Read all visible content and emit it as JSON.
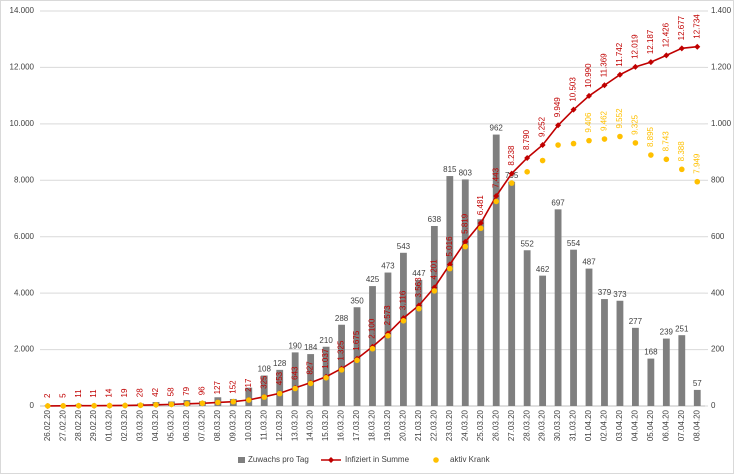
{
  "chart_data": {
    "type": "bar",
    "categories": [
      "26.02.20",
      "27.02.20",
      "28.02.20",
      "29.02.20",
      "01.03.20",
      "02.03.20",
      "03.03.20",
      "04.03.20",
      "05.03.20",
      "06.03.20",
      "07.03.20",
      "08.03.20",
      "09.03.20",
      "10.03.20",
      "11.03.20",
      "12.03.20",
      "13.03.20",
      "14.03.20",
      "15.03.20",
      "16.03.20",
      "17.03.20",
      "18.03.20",
      "19.03.20",
      "20.03.20",
      "21.03.20",
      "22.03.20",
      "23.03.20",
      "24.03.20",
      "25.03.20",
      "26.03.20",
      "27.03.20",
      "28.03.20",
      "29.03.20",
      "30.03.20",
      "31.03.20",
      "01.04.20",
      "02.04.20",
      "03.04.20",
      "04.04.20",
      "05.04.20",
      "06.04.20",
      "07.04.20",
      "08.04.20"
    ],
    "series": [
      {
        "name": "Zuwachs pro Tag",
        "type": "bar",
        "axis": "y2",
        "color": "#7f7f7f",
        "values": [
          2,
          3,
          6,
          0,
          3,
          5,
          9,
          14,
          16,
          21,
          17,
          31,
          25,
          65,
          108,
          128,
          190,
          184,
          210,
          288,
          350,
          425,
          473,
          543,
          447,
          638,
          815,
          803,
          662,
          962,
          795,
          552,
          462,
          697,
          554,
          487,
          379,
          373,
          277,
          168,
          239,
          251,
          57
        ],
        "value_labels": [
          null,
          null,
          null,
          null,
          null,
          null,
          null,
          null,
          null,
          null,
          null,
          null,
          null,
          null,
          "108",
          "128",
          "190",
          "184",
          "210",
          "288",
          "350",
          "425",
          "473",
          "543",
          "447",
          "638",
          "815",
          "803",
          null,
          "962",
          "795",
          "552",
          "462",
          "697",
          "554",
          "487",
          "379",
          "373",
          "277",
          "168",
          "239",
          "251",
          "57"
        ]
      },
      {
        "name": "Infiziert in Summe",
        "type": "line",
        "color": "#c00000",
        "values": [
          2,
          5,
          11,
          11,
          14,
          19,
          28,
          42,
          58,
          79,
          96,
          127,
          152,
          217,
          325,
          453,
          643,
          827,
          1037,
          1325,
          1675,
          2100,
          2573,
          3116,
          3563,
          4201,
          5016,
          5819,
          6481,
          7443,
          8238,
          8790,
          9252,
          9949,
          10503,
          10990,
          11369,
          11742,
          12019,
          12187,
          12426,
          12677,
          12734
        ],
        "value_labels": [
          "2",
          "5",
          "11",
          "11",
          "14",
          "19",
          "28",
          "42",
          "58",
          "79",
          "96",
          "127",
          "152",
          "217",
          "325",
          "453",
          "643",
          "827",
          "1.037",
          "1.325",
          "1.675",
          "2.100",
          "2.573",
          "3.116",
          "3.563",
          "4.201",
          "5.016",
          "5.819",
          "6.481",
          "7.443",
          "8.238",
          "8.790",
          "9.252",
          "9.949",
          "10.503",
          "10.990",
          "11.369",
          "11.742",
          "12.019",
          "12.187",
          "12.426",
          "12.677",
          "12.734"
        ]
      },
      {
        "name": "aktiv Krank",
        "type": "scatter",
        "color": "#ffc000",
        "values": [
          2,
          5,
          11,
          11,
          14,
          19,
          28,
          42,
          58,
          79,
          96,
          127,
          152,
          210,
          315,
          440,
          620,
          800,
          1000,
          1280,
          1620,
          2030,
          2490,
          3020,
          3450,
          4080,
          4870,
          5650,
          6300,
          7250,
          7900,
          8300,
          8700,
          9250,
          9300,
          9406,
          9462,
          9552,
          9325,
          8895,
          8743,
          8388,
          7949
        ],
        "value_labels": [
          null,
          null,
          null,
          null,
          null,
          null,
          null,
          null,
          null,
          null,
          null,
          null,
          null,
          null,
          null,
          null,
          null,
          null,
          null,
          null,
          null,
          null,
          null,
          null,
          null,
          null,
          null,
          null,
          null,
          null,
          null,
          null,
          null,
          null,
          null,
          "9.406",
          "9.462",
          "9.552",
          "9.325",
          "8.895",
          "8.743",
          "8.388",
          "7.949"
        ]
      }
    ],
    "ylim": [
      0,
      14000
    ],
    "yticks": [
      0,
      {
        "value": 2000,
        "label": "2.000"
      },
      {
        "value": 4000,
        "label": "4.000"
      },
      {
        "value": 6000,
        "label": "6.000"
      },
      {
        "value": 8000,
        "label": "8.000"
      },
      {
        "value": 10000,
        "label": "10.000"
      },
      {
        "value": 12000,
        "label": "12.000"
      },
      {
        "value": 14000,
        "label": "14.000"
      }
    ],
    "y2lim": [
      0,
      1400
    ],
    "y2ticks": [
      0,
      200,
      400,
      600,
      800,
      {
        "value": 1000,
        "label": "1.000"
      },
      {
        "value": 1200,
        "label": "1.200"
      },
      {
        "value": 1400,
        "label": "1.400"
      }
    ],
    "grid": true,
    "legend": "bottom"
  }
}
